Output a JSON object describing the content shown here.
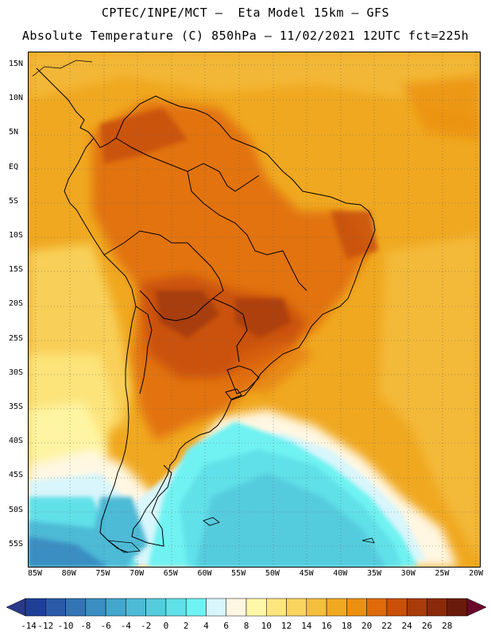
{
  "header": {
    "line1": "CPTEC/INPE/MCT –  Eta Model 15km – GFS",
    "line2": "Absolute Temperature (C) 850hPa – 11/02/2021 12UTC fct=225h"
  },
  "map": {
    "lat_labels": [
      "15N",
      "10N",
      "5N",
      "EQ",
      "5S",
      "10S",
      "15S",
      "20S",
      "25S",
      "30S",
      "35S",
      "40S",
      "45S",
      "50S",
      "55S"
    ],
    "lon_labels": [
      "85W",
      "80W",
      "75W",
      "70W",
      "65W",
      "60W",
      "55W",
      "50W",
      "45W",
      "40W",
      "35W",
      "30W",
      "25W",
      "20W"
    ]
  },
  "legend": {
    "labels": [
      "-14",
      "-12",
      "-10",
      "-8",
      "-6",
      "-4",
      "-2",
      "0",
      "2",
      "4",
      "6",
      "8",
      "10",
      "12",
      "14",
      "16",
      "18",
      "20",
      "22",
      "24",
      "26",
      "28"
    ],
    "colors": [
      "#1f3f96",
      "#2a5aa8",
      "#3275b6",
      "#3a8ec2",
      "#43a6cc",
      "#4dbad6",
      "#55ccde",
      "#60e0e8",
      "#6ff2f2",
      "#d8f6fb",
      "#fff7e2",
      "#fff7a8",
      "#fde67e",
      "#f9d45f",
      "#f4be3f",
      "#f0a820",
      "#eb9010",
      "#e06a0a",
      "#c8500a",
      "#a83c0a",
      "#8a2a0a",
      "#6a1a0a"
    ]
  }
}
